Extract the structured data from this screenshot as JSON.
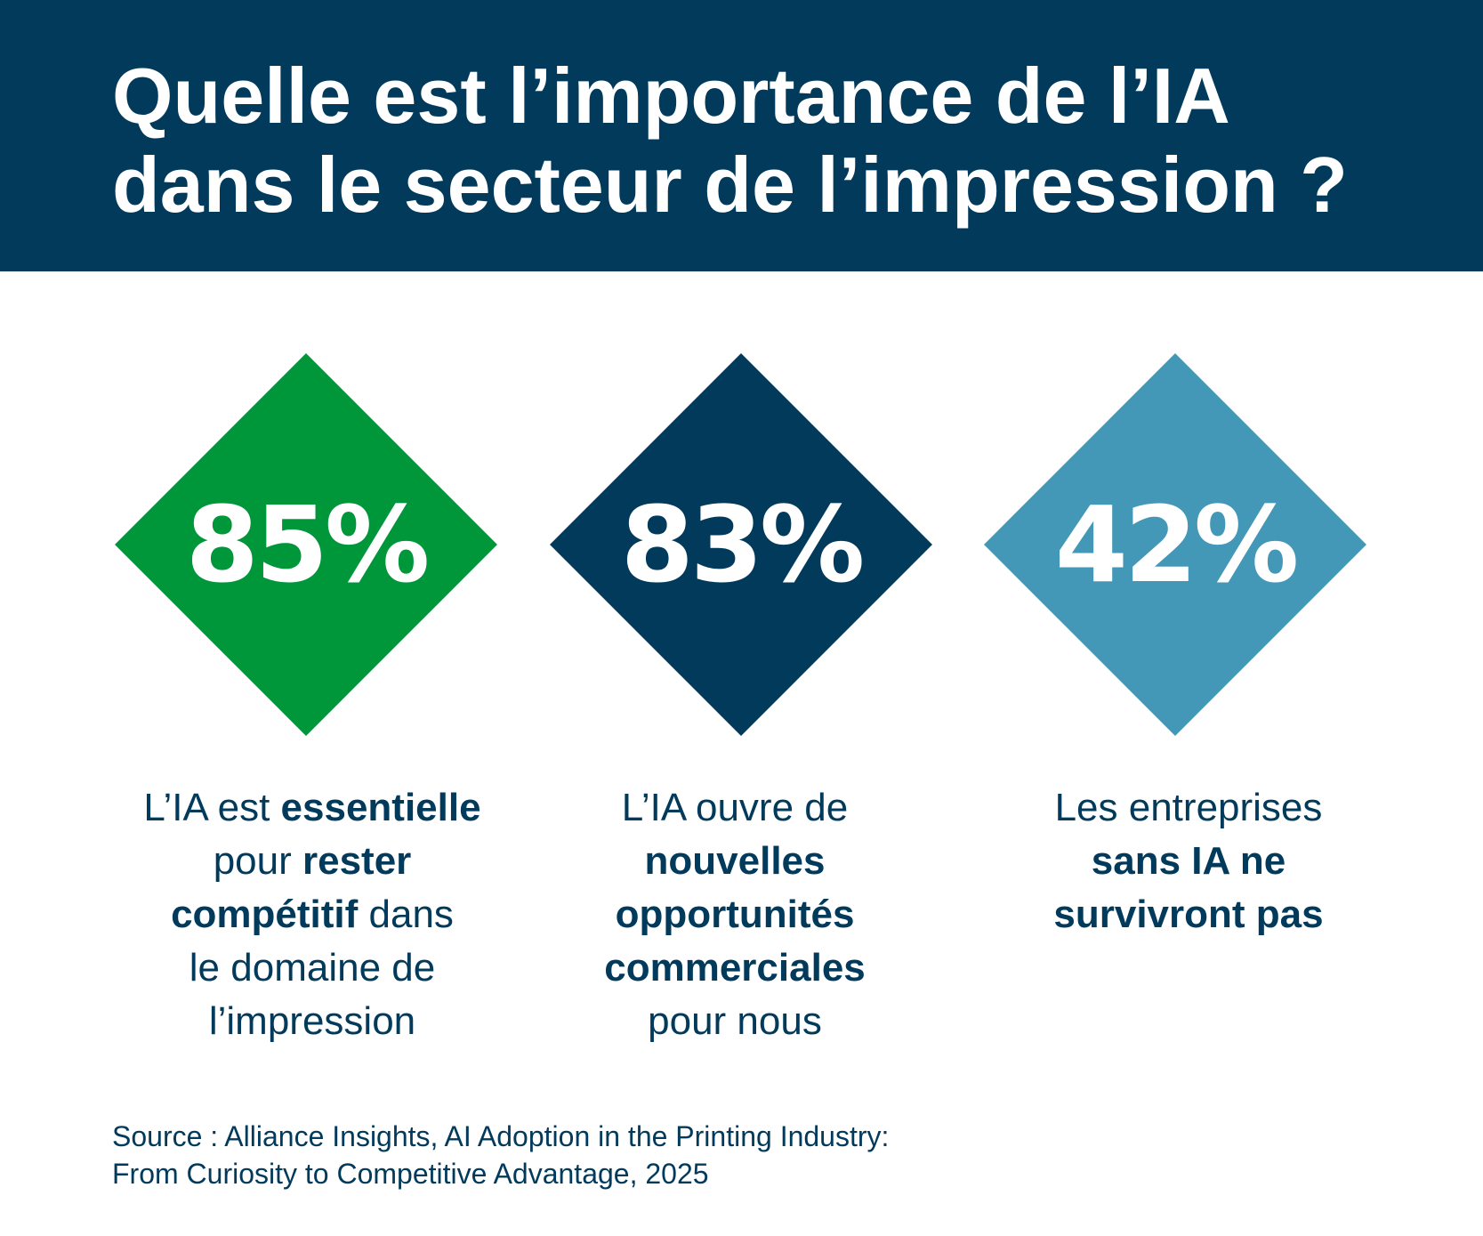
{
  "title": {
    "line1": "Quelle est l’importance de l’IA",
    "line2": "dans le secteur de l’impression ?"
  },
  "colors": {
    "navy": "#023a5c",
    "green": "#00963a",
    "teal": "#4397b7"
  },
  "stats": [
    {
      "value": "85%",
      "fill_color": "#00963a",
      "desc": {
        "l1a": "L’IA est ",
        "l1b": "essentielle",
        "l2a": "pour ",
        "l2b": "rester",
        "l3a": "compétitif",
        "l3b": " dans",
        "l4": "le domaine de",
        "l5": "l’impression"
      }
    },
    {
      "value": "83%",
      "fill_color": "#023a5c",
      "desc": {
        "l1": "L’IA ouvre de",
        "l2": "nouvelles",
        "l3": "opportunités",
        "l4": "commerciales",
        "l5": "pour nous"
      }
    },
    {
      "value": "42%",
      "fill_color": "#4397b7",
      "desc": {
        "l1": "Les entreprises",
        "l2": "sans IA ne",
        "l3": "survivront pas"
      }
    }
  ],
  "source": {
    "line1": "Source : Alliance Insights, AI Adoption in the Printing Industry:",
    "line2": "From Curiosity to Competitive Advantage, 2025"
  }
}
